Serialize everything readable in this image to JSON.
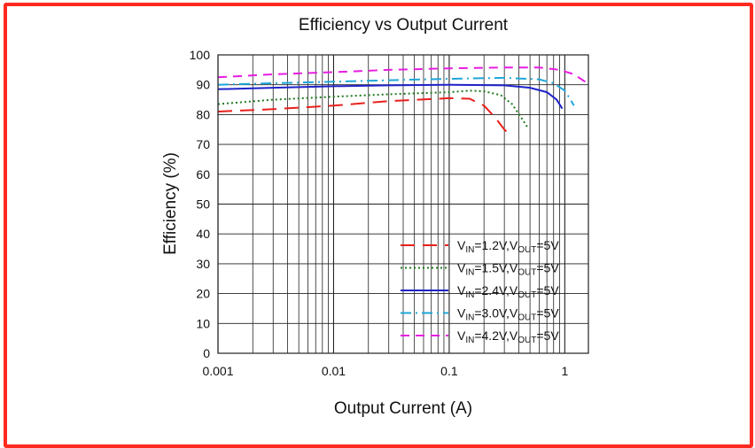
{
  "chart_data": {
    "type": "line",
    "title": "Efficiency vs Output Current",
    "xlabel": "Output Current (A)",
    "ylabel": "Efficiency (%)",
    "xscale": "log",
    "xlim": [
      0.001,
      1.6
    ],
    "ylim": [
      0,
      100
    ],
    "xticks": [
      {
        "value": 0.001,
        "label": "0.001"
      },
      {
        "value": 0.01,
        "label": "0.01"
      },
      {
        "value": 0.1,
        "label": "0.1"
      },
      {
        "value": 1,
        "label": "1"
      }
    ],
    "yticks": [
      {
        "value": 0,
        "label": "0"
      },
      {
        "value": 10,
        "label": "10"
      },
      {
        "value": 20,
        "label": "20"
      },
      {
        "value": 30,
        "label": "30"
      },
      {
        "value": 40,
        "label": "40"
      },
      {
        "value": 50,
        "label": "50"
      },
      {
        "value": 60,
        "label": "60"
      },
      {
        "value": 70,
        "label": "70"
      },
      {
        "value": 80,
        "label": "80"
      },
      {
        "value": 90,
        "label": "90"
      },
      {
        "value": 100,
        "label": "100"
      }
    ],
    "grid": true,
    "legend_position": "bottom-right",
    "series": [
      {
        "name": "VIN=1.2V,VOUT=5V",
        "vin": "1.2V",
        "vout": "5V",
        "color": "#e8201c",
        "dash": "long-dash",
        "x": [
          0.001,
          0.003,
          0.01,
          0.03,
          0.1,
          0.15,
          0.2,
          0.25,
          0.3,
          0.33
        ],
        "y": [
          81,
          81.8,
          83,
          84.5,
          85.5,
          85.3,
          83,
          79,
          75,
          73.5
        ]
      },
      {
        "name": "VIN=1.5V,VOUT=5V",
        "vin": "1.5V",
        "vout": "5V",
        "color": "#1f7a1f",
        "dash": "dotted",
        "x": [
          0.001,
          0.003,
          0.01,
          0.03,
          0.1,
          0.15,
          0.2,
          0.28,
          0.35,
          0.42,
          0.48
        ],
        "y": [
          83.5,
          85,
          86,
          86.8,
          87.5,
          88,
          87.8,
          86.5,
          83.5,
          79,
          75.5
        ]
      },
      {
        "name": "VIN=2.4V,VOUT=5V",
        "vin": "2.4V",
        "vout": "5V",
        "color": "#1f23c9",
        "dash": "solid",
        "x": [
          0.001,
          0.003,
          0.01,
          0.03,
          0.1,
          0.3,
          0.5,
          0.7,
          0.85,
          0.95
        ],
        "y": [
          88.5,
          89,
          89.5,
          89.8,
          90,
          89.8,
          89,
          87.5,
          85,
          82
        ]
      },
      {
        "name": "VIN=3.0V,VOUT=5V",
        "vin": "3.0V",
        "vout": "5V",
        "color": "#1fa6d8",
        "dash": "dash-dot",
        "x": [
          0.001,
          0.003,
          0.01,
          0.03,
          0.1,
          0.3,
          0.6,
          0.8,
          1.0,
          1.1,
          1.2
        ],
        "y": [
          90,
          90.5,
          91,
          91.5,
          92,
          92.3,
          91.8,
          90.5,
          88,
          85.5,
          83
        ]
      },
      {
        "name": "VIN=4.2V,VOUT=5V",
        "vin": "4.2V",
        "vout": "5V",
        "color": "#e81ce0",
        "dash": "dashed",
        "x": [
          0.001,
          0.003,
          0.01,
          0.03,
          0.1,
          0.3,
          0.6,
          0.9,
          1.2,
          1.5,
          1.6
        ],
        "y": [
          92.5,
          93.5,
          94.2,
          95,
          95.5,
          95.8,
          95.8,
          95,
          93.5,
          91,
          90
        ]
      }
    ]
  }
}
